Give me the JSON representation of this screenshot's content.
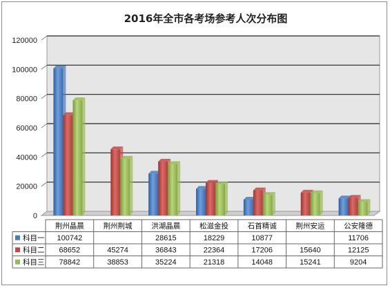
{
  "chart_data": {
    "type": "bar",
    "title": "2016年全市各考场参考人次分布图",
    "categories": [
      "荆州晶晨",
      "荆州荆城",
      "洪湖晶晨",
      "松滋金投",
      "石首精诚",
      "荆州安运",
      "公安隆德"
    ],
    "series": [
      {
        "name": "科目一",
        "values": [
          100742,
          null,
          28615,
          18229,
          10877,
          null,
          11706
        ]
      },
      {
        "name": "科目二",
        "values": [
          68652,
          45274,
          36843,
          22364,
          17206,
          15640,
          12125
        ]
      },
      {
        "name": "科目三",
        "values": [
          78842,
          38853,
          35224,
          21318,
          14048,
          15241,
          9204
        ]
      }
    ],
    "ylim": [
      0,
      120000
    ],
    "yticks": [
      "0",
      "20000",
      "40000",
      "60000",
      "80000",
      "100000",
      "120000"
    ],
    "grid": true,
    "data_table": true,
    "colors": {
      "series1": "#4a7ebb",
      "series2": "#be4b48",
      "series3": "#98b954",
      "wall": "#e6e6e6",
      "grid": "#222222"
    }
  }
}
